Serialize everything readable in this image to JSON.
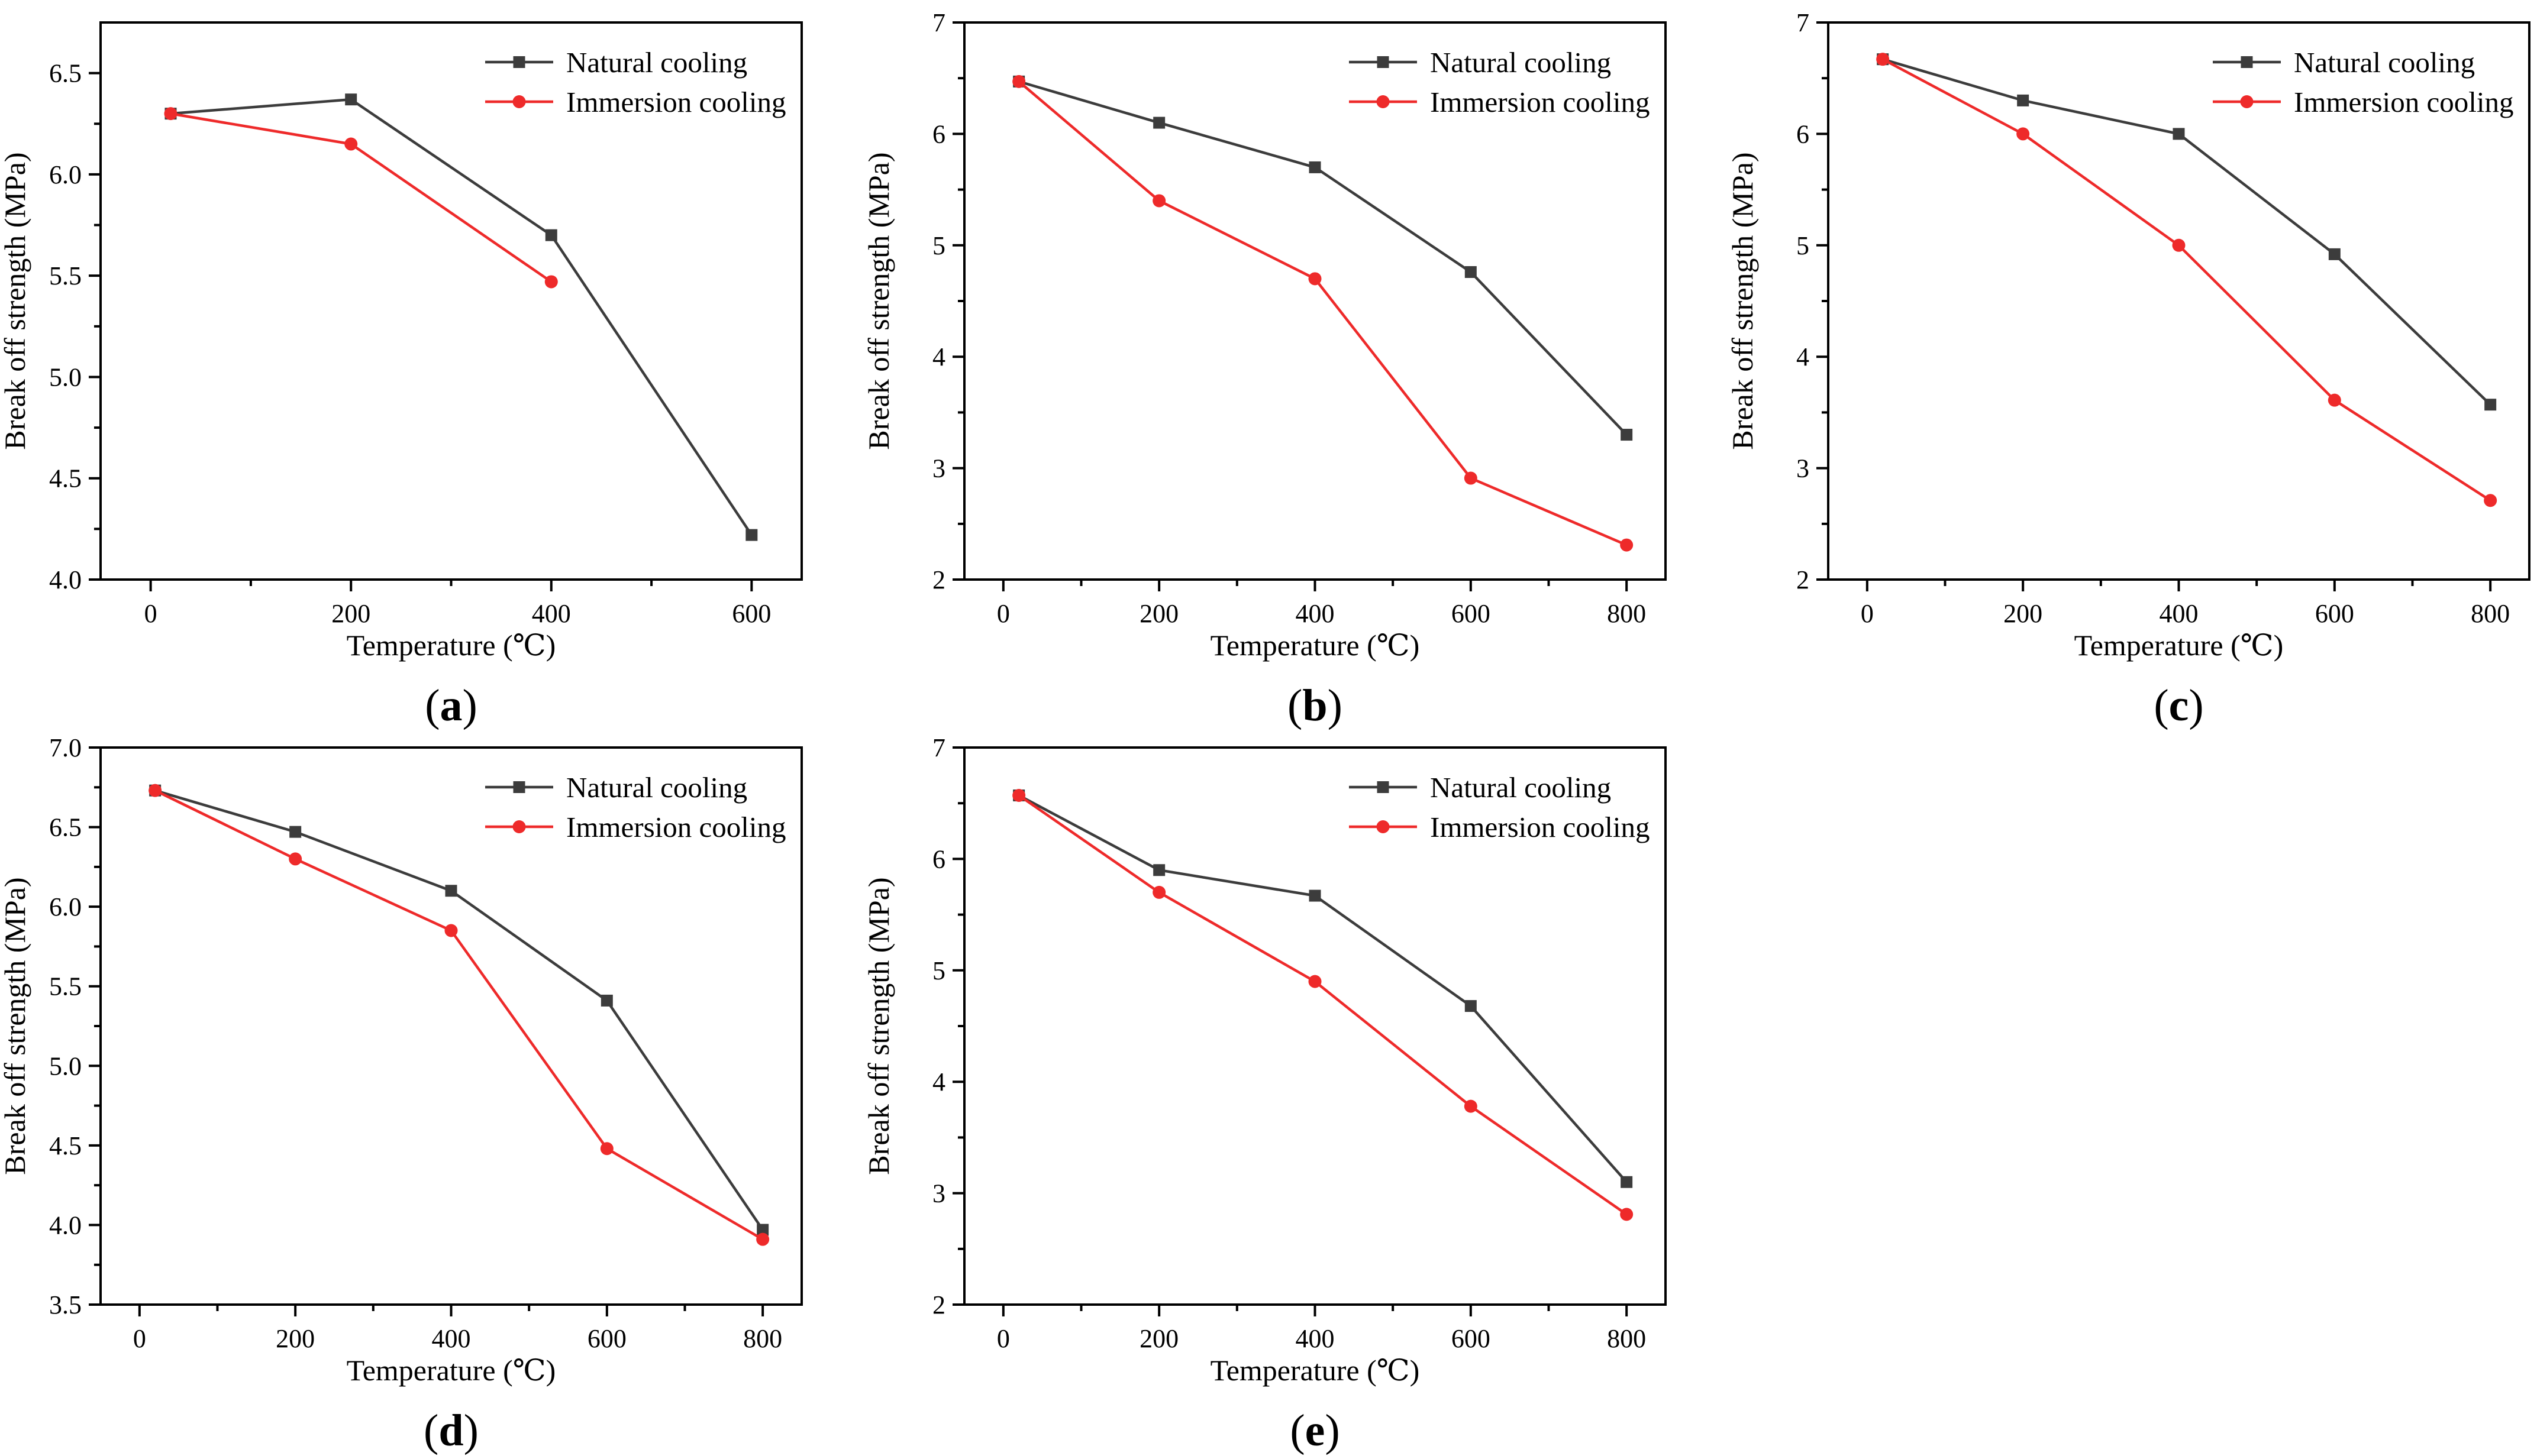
{
  "colors": {
    "natural": "#3c3c3c",
    "immersion": "#ee2a2a",
    "axis": "#000000"
  },
  "chart_data": [
    {
      "type": "line",
      "panel": "a",
      "xlabel": "Temperature (℃)",
      "ylabel": "Break off strength (MPa)",
      "xlim": [
        -50,
        650
      ],
      "ylim": [
        4.0,
        6.75
      ],
      "xticks": [
        0,
        200,
        400,
        600
      ],
      "xtick_labels": [
        "0",
        "200",
        "400",
        "600"
      ],
      "xminor": [
        100,
        300,
        500
      ],
      "yticks": [
        4.0,
        4.5,
        5.0,
        5.5,
        6.0,
        6.5
      ],
      "ytick_labels": [
        "4.0",
        "4.5",
        "5.0",
        "5.5",
        "6.0",
        "6.5"
      ],
      "legend_position": "top-right",
      "series": [
        {
          "name": "Natural cooling",
          "marker": "square",
          "color": "#3c3c3c",
          "x": [
            20,
            200,
            400,
            600
          ],
          "values": [
            6.3,
            6.37,
            5.7,
            4.22
          ]
        },
        {
          "name": "Immersion cooling",
          "marker": "circle",
          "color": "#ee2a2a",
          "x": [
            20,
            200,
            400
          ],
          "values": [
            6.3,
            6.15,
            5.47
          ]
        }
      ]
    },
    {
      "type": "line",
      "panel": "b",
      "xlabel": "Temperature (℃)",
      "ylabel": "Break off strength (MPa)",
      "xlim": [
        -50,
        850
      ],
      "ylim": [
        2,
        7
      ],
      "xticks": [
        0,
        200,
        400,
        600,
        800
      ],
      "xtick_labels": [
        "0",
        "200",
        "400",
        "600",
        "800"
      ],
      "xminor": [
        100,
        300,
        500,
        700
      ],
      "yticks": [
        2,
        3,
        4,
        5,
        6,
        7
      ],
      "ytick_labels": [
        "2",
        "3",
        "4",
        "5",
        "6",
        "7"
      ],
      "legend_position": "top-right",
      "series": [
        {
          "name": "Natural cooling",
          "marker": "square",
          "color": "#3c3c3c",
          "x": [
            20,
            200,
            400,
            600,
            800
          ],
          "values": [
            6.47,
            6.1,
            5.7,
            4.76,
            3.3
          ]
        },
        {
          "name": "Immersion cooling",
          "marker": "circle",
          "color": "#ee2a2a",
          "x": [
            20,
            200,
            400,
            600,
            800
          ],
          "values": [
            6.47,
            5.4,
            4.7,
            2.91,
            2.31
          ]
        }
      ]
    },
    {
      "type": "line",
      "panel": "c",
      "xlabel": "Temperature (℃)",
      "ylabel": "Break off strength (MPa)",
      "xlim": [
        -50,
        850
      ],
      "ylim": [
        2,
        7
      ],
      "xticks": [
        0,
        200,
        400,
        600,
        800
      ],
      "xtick_labels": [
        "0",
        "200",
        "400",
        "600",
        "800"
      ],
      "xminor": [
        100,
        300,
        500,
        700
      ],
      "yticks": [
        2,
        3,
        4,
        5,
        6,
        7
      ],
      "ytick_labels": [
        "2",
        "3",
        "4",
        "5",
        "6",
        "7"
      ],
      "legend_position": "top-right",
      "series": [
        {
          "name": "Natural cooling",
          "marker": "square",
          "color": "#3c3c3c",
          "x": [
            20,
            200,
            400,
            600,
            800
          ],
          "values": [
            6.67,
            6.3,
            6.0,
            4.92,
            3.57
          ]
        },
        {
          "name": "Immersion cooling",
          "marker": "circle",
          "color": "#ee2a2a",
          "x": [
            20,
            200,
            400,
            600,
            800
          ],
          "values": [
            6.67,
            6.0,
            5.0,
            3.61,
            2.71
          ]
        }
      ]
    },
    {
      "type": "line",
      "panel": "d",
      "xlabel": "Temperature (℃)",
      "ylabel": "Break off strength (MPa)",
      "xlim": [
        -50,
        850
      ],
      "ylim": [
        3.5,
        7.0
      ],
      "xticks": [
        0,
        200,
        400,
        600,
        800
      ],
      "xtick_labels": [
        "0",
        "200",
        "400",
        "600",
        "800"
      ],
      "xminor": [
        100,
        300,
        500,
        700
      ],
      "yticks": [
        3.5,
        4.0,
        4.5,
        5.0,
        5.5,
        6.0,
        6.5,
        7.0
      ],
      "ytick_labels": [
        "3.5",
        "4.0",
        "4.5",
        "5.0",
        "5.5",
        "6.0",
        "6.5",
        "7.0"
      ],
      "legend_position": "top-right",
      "series": [
        {
          "name": "Natural cooling",
          "marker": "square",
          "color": "#3c3c3c",
          "x": [
            20,
            200,
            400,
            600,
            800
          ],
          "values": [
            6.73,
            6.47,
            6.1,
            5.41,
            3.97
          ]
        },
        {
          "name": "Immersion cooling",
          "marker": "circle",
          "color": "#ee2a2a",
          "x": [
            20,
            200,
            400,
            600,
            800
          ],
          "values": [
            6.73,
            6.3,
            5.85,
            4.48,
            3.91
          ]
        }
      ]
    },
    {
      "type": "line",
      "panel": "e",
      "xlabel": "Temperature (℃)",
      "ylabel": "Break off strength (MPa)",
      "xlim": [
        -50,
        850
      ],
      "ylim": [
        2,
        7
      ],
      "xticks": [
        0,
        200,
        400,
        600,
        800
      ],
      "xtick_labels": [
        "0",
        "200",
        "400",
        "600",
        "800"
      ],
      "xminor": [
        100,
        300,
        500,
        700
      ],
      "yticks": [
        2,
        3,
        4,
        5,
        6,
        7
      ],
      "ytick_labels": [
        "2",
        "3",
        "4",
        "5",
        "6",
        "7"
      ],
      "legend_position": "top-right",
      "series": [
        {
          "name": "Natural cooling",
          "marker": "square",
          "color": "#3c3c3c",
          "x": [
            20,
            200,
            400,
            600,
            800
          ],
          "values": [
            6.57,
            5.9,
            5.67,
            4.68,
            3.1
          ]
        },
        {
          "name": "Immersion cooling",
          "marker": "circle",
          "color": "#ee2a2a",
          "x": [
            20,
            200,
            400,
            600,
            800
          ],
          "values": [
            6.57,
            5.7,
            4.9,
            3.78,
            2.81
          ]
        }
      ]
    }
  ]
}
